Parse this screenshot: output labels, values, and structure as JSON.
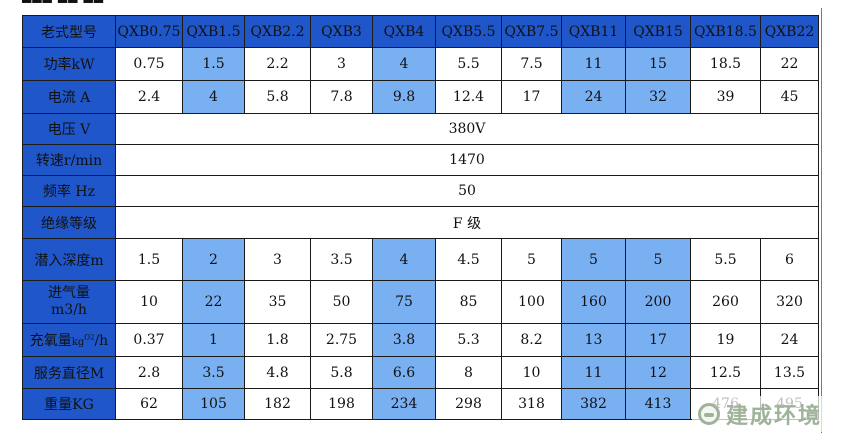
{
  "header_label": "老式型号",
  "models": [
    "QXB0.75",
    "QXB1.5",
    "QXB2.2",
    "QXB3",
    "QXB4",
    "QXB5.5",
    "QXB7.5",
    "QXB11",
    "QXB15",
    "QXB18.5",
    "QXB22"
  ],
  "rows": [
    {
      "label": "功率kW",
      "values": [
        "0.75",
        "1.5",
        "2.2",
        "3",
        "4",
        "5.5",
        "7.5",
        "11",
        "15",
        "18.5",
        "22"
      ]
    },
    {
      "label": "电流 A",
      "values": [
        "2.4",
        "4",
        "5.8",
        "7.8",
        "9.8",
        "12.4",
        "17",
        "24",
        "32",
        "39",
        "45"
      ]
    },
    {
      "label": "电压 V",
      "merged": "380V"
    },
    {
      "label": "转速r/min",
      "merged": "1470"
    },
    {
      "label": "频率 Hz",
      "merged": "50"
    },
    {
      "label": "绝缘等级",
      "merged": "F 级"
    },
    {
      "label": "潜入深度m",
      "values": [
        "1.5",
        "2",
        "3",
        "3.5",
        "4",
        "4.5",
        "5",
        "5",
        "5",
        "5.5",
        "6"
      ]
    },
    {
      "label_line1": "进气量",
      "label_line2": "m3/h",
      "values": [
        "10",
        "22",
        "35",
        "50",
        "75",
        "85",
        "100",
        "160",
        "200",
        "260",
        "320"
      ]
    },
    {
      "label_prefix": "充氧量",
      "label_kg": "kg",
      "label_sup": "O2",
      "label_suffix": "/h",
      "values": [
        "0.37",
        "1",
        "1.8",
        "2.75",
        "3.8",
        "5.3",
        "8.2",
        "13",
        "17",
        "19",
        "24"
      ]
    },
    {
      "label": "服务直径M",
      "values": [
        "2.8",
        "3.5",
        "4.8",
        "5.8",
        "6.6",
        "8",
        "10",
        "11",
        "12",
        "12.5",
        "13.5"
      ]
    },
    {
      "label": "重量KG",
      "values": [
        "62",
        "105",
        "182",
        "198",
        "234",
        "298",
        "318",
        "382",
        "413",
        "476",
        "495"
      ]
    }
  ],
  "highlight_columns": [
    1,
    4,
    7,
    8
  ],
  "colors": {
    "header_blue": "#1f56c9",
    "highlight_blue": "#79b0f2",
    "watermark_green": "#9fb39a"
  },
  "watermark_text": "建成环境"
}
